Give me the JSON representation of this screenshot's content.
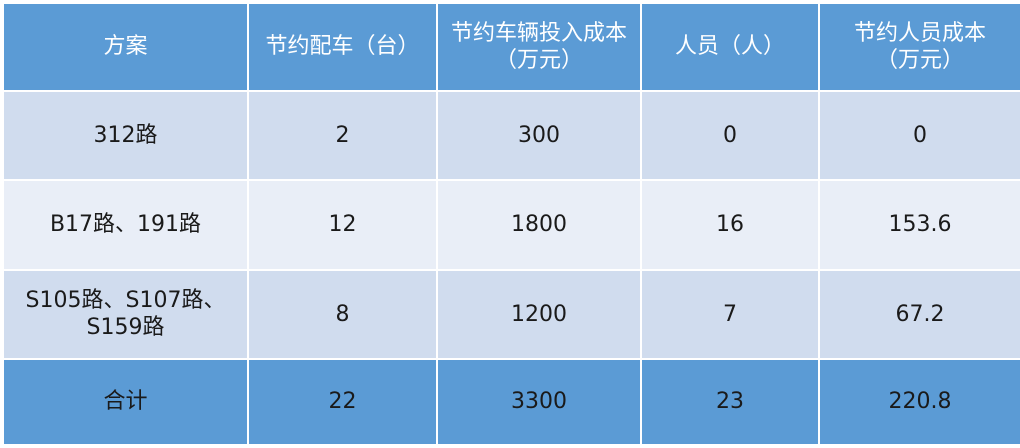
{
  "table": {
    "headers": [
      "方案",
      "节约配车（台）",
      "节约车辆投入成本\n（万元）",
      "人员（人）",
      "节约人员成本\n（万元）"
    ],
    "rows": [
      [
        "312路",
        "2",
        "300",
        "0",
        "0"
      ],
      [
        "B17路、191路",
        "12",
        "1800",
        "16",
        "153.6"
      ],
      [
        "S105路、S107路、\nS159路",
        "8",
        "1200",
        "7",
        "67.2"
      ]
    ],
    "total": [
      "合计",
      "22",
      "3300",
      "23",
      "220.8"
    ]
  },
  "colors": {
    "header_bg": "#5b9bd5",
    "row_odd_bg": "#d0dcee",
    "row_even_bg": "#e9eef7"
  }
}
